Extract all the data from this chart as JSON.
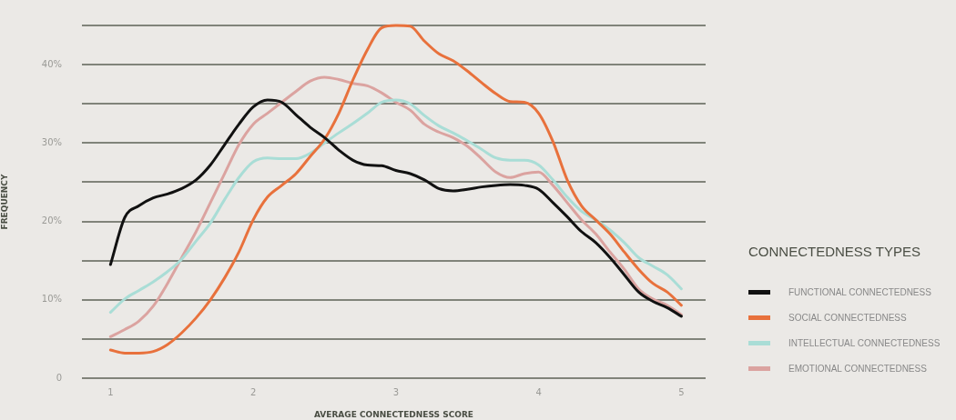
{
  "chart_data": {
    "type": "line",
    "xlabel": "AVERAGE CONNECTEDNESS SCORE",
    "ylabel": "FREQUENCY",
    "legend_title": "CONNECTEDNESS TYPES",
    "legend": "right",
    "grid": "y",
    "marker": "none",
    "line_style": "solid",
    "x": [
      1,
      1.1,
      1.2,
      1.3,
      1.4,
      1.5,
      1.6,
      1.7,
      1.8,
      1.9,
      2,
      2.1,
      2.2,
      2.3,
      2.4,
      2.5,
      2.6,
      2.7,
      2.8,
      2.9,
      3,
      3.1,
      3.2,
      3.3,
      3.4,
      3.5,
      3.6,
      3.7,
      3.8,
      3.9,
      4,
      4.1,
      4.2,
      4.3,
      4.4,
      4.5,
      4.6,
      4.7,
      4.8,
      4.9,
      5
    ],
    "xlim": [
      0.8,
      5.17
    ],
    "xticks": [
      1,
      2,
      3,
      4,
      5
    ],
    "ylim": [
      0,
      45
    ],
    "yticks": [
      {
        "value": 0,
        "label": "0"
      },
      {
        "value": 5,
        "label": null
      },
      {
        "value": 10,
        "label": "10%"
      },
      {
        "value": 15,
        "label": null
      },
      {
        "value": 20,
        "label": "20%"
      },
      {
        "value": 25,
        "label": null
      },
      {
        "value": 30,
        "label": "30%"
      },
      {
        "value": 35,
        "label": null
      },
      {
        "value": 40,
        "label": "40%"
      },
      {
        "value": 45,
        "label": null
      }
    ],
    "series": [
      {
        "name": "FUNCTIONAL CONNECTEDNESS",
        "color": "#111111",
        "values": [
          14.5,
          20.5,
          22,
          23,
          23.5,
          24.2,
          25.3,
          27.2,
          29.8,
          32.4,
          34.6,
          35.5,
          35.2,
          33.6,
          32,
          30.7,
          29.1,
          27.8,
          27.2,
          27.1,
          26.5,
          26.1,
          25.3,
          24.2,
          23.9,
          24.1,
          24.4,
          24.6,
          24.7,
          24.6,
          24.1,
          22.4,
          20.6,
          18.7,
          17.3,
          15.4,
          13.2,
          11,
          9.8,
          9,
          7.9
        ]
      },
      {
        "name": "SOCIAL CONNECTEDNESS",
        "color": "#e8713c",
        "values": [
          3.6,
          3.2,
          3.2,
          3.4,
          4.3,
          5.8,
          7.7,
          10,
          12.8,
          16.1,
          20.2,
          23.1,
          24.6,
          26.1,
          28.3,
          30.5,
          33.8,
          38.1,
          41.9,
          44.7,
          45,
          44.9,
          43,
          41.4,
          40.5,
          39.2,
          37.7,
          36.3,
          35.3,
          35.2,
          33.8,
          30.2,
          25.3,
          22,
          20.2,
          18.4,
          16.1,
          13.9,
          12.1,
          11,
          9.3
        ]
      },
      {
        "name": "INTELLECTUAL CONNECTEDNESS",
        "color": "#a9ddd6",
        "values": [
          8.4,
          10.1,
          11.2,
          12.3,
          13.6,
          15.2,
          17.5,
          19.8,
          22.8,
          25.6,
          27.6,
          28.1,
          28,
          28,
          28.7,
          30,
          31.3,
          32.5,
          33.8,
          35.2,
          35.5,
          35,
          33.5,
          32.2,
          31.3,
          30.3,
          29.2,
          28.1,
          27.8,
          27.8,
          27.2,
          25.3,
          23.1,
          21.3,
          20.2,
          18.9,
          17.3,
          15.4,
          14.3,
          13.2,
          11.4
        ]
      },
      {
        "name": "EMOTIONAL CONNECTEDNESS",
        "color": "#dba3a0",
        "values": [
          5.3,
          6.2,
          7.3,
          9.2,
          12.1,
          15.4,
          18.7,
          22.4,
          26.1,
          29.8,
          32.4,
          33.8,
          35.2,
          36.6,
          37.9,
          38.4,
          38.1,
          37.6,
          37.3,
          36.4,
          35.2,
          34.2,
          32.4,
          31.4,
          30.7,
          29.6,
          28,
          26.3,
          25.6,
          26.1,
          26.3,
          24.6,
          22.4,
          20.2,
          18.4,
          16.1,
          13.9,
          11.4,
          10.1,
          9.3,
          8.1
        ]
      }
    ]
  }
}
